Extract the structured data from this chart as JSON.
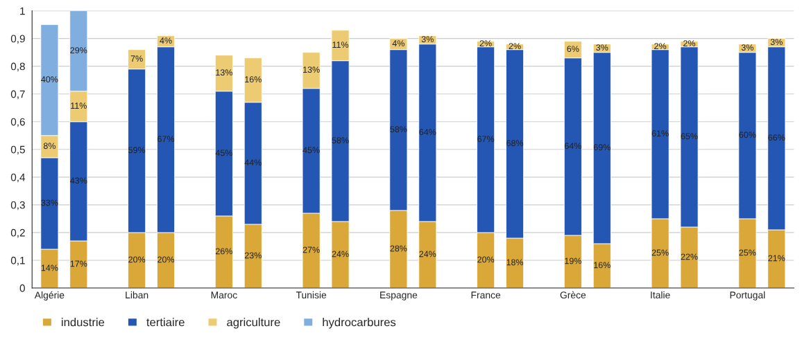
{
  "chart_data": {
    "type": "bar",
    "stacked": true,
    "categories": [
      "Algérie",
      null,
      null,
      "Liban",
      null,
      null,
      "Maroc",
      null,
      null,
      "Tunisie",
      null,
      null,
      "Espagne",
      null,
      null,
      "France",
      null,
      null,
      "Grèce",
      null,
      null,
      "Italie",
      null,
      null,
      "Portugal",
      null
    ],
    "series": [
      {
        "name": "industrie",
        "color": "#d9a838",
        "values": [
          0.14,
          0.17,
          null,
          0.2,
          0.2,
          null,
          0.26,
          0.23,
          null,
          0.27,
          0.24,
          null,
          0.28,
          0.24,
          null,
          0.2,
          0.18,
          null,
          0.19,
          0.16,
          null,
          0.25,
          0.22,
          null,
          0.25,
          0.21
        ],
        "value_labels": [
          "14%",
          "17%",
          null,
          "20%",
          "20%",
          null,
          "26%",
          "23%",
          null,
          "27%",
          "24%",
          null,
          "28%",
          "24%",
          null,
          "20%",
          "18%",
          null,
          "19%",
          "16%",
          null,
          "25%",
          "22%",
          null,
          "25%",
          "21%"
        ]
      },
      {
        "name": "tertiaire",
        "color": "#2456b4",
        "values": [
          0.33,
          0.43,
          null,
          0.59,
          0.67,
          null,
          0.45,
          0.44,
          null,
          0.45,
          0.58,
          null,
          0.58,
          0.64,
          null,
          0.67,
          0.68,
          null,
          0.64,
          0.69,
          null,
          0.61,
          0.65,
          null,
          0.6,
          0.66
        ],
        "value_labels": [
          "33%",
          "43%",
          null,
          "59%",
          "67%",
          null,
          "45%",
          "44%",
          null,
          "45%",
          "58%",
          null,
          "58%",
          "64%",
          null,
          "67%",
          "68%",
          null,
          "64%",
          "69%",
          null,
          "61%",
          "65%",
          null,
          "60%",
          "66%"
        ]
      },
      {
        "name": "agriculture",
        "color": "#eccb72",
        "values": [
          0.08,
          0.11,
          null,
          0.07,
          0.04,
          null,
          0.13,
          0.16,
          null,
          0.13,
          0.11,
          null,
          0.04,
          0.03,
          null,
          0.02,
          0.02,
          null,
          0.06,
          0.03,
          null,
          0.02,
          0.02,
          null,
          0.03,
          0.03
        ],
        "value_labels": [
          "8%",
          "11%",
          null,
          "7%",
          "4%",
          null,
          "13%",
          "16%",
          null,
          "13%",
          "11%",
          null,
          "4%",
          "3%",
          null,
          "2%",
          "2%",
          null,
          "6%",
          "3%",
          null,
          "2%",
          "2%",
          null,
          "3%",
          "3%"
        ]
      },
      {
        "name": "hydrocarbures",
        "color": "#80aede",
        "values": [
          0.4,
          0.29,
          null,
          null,
          null,
          null,
          null,
          null,
          null,
          null,
          null,
          null,
          null,
          null,
          null,
          null,
          null,
          null,
          null,
          null,
          null,
          null,
          null,
          null,
          null,
          null
        ],
        "value_labels": [
          "40%",
          "29%",
          null,
          null,
          null,
          null,
          null,
          null,
          null,
          null,
          null,
          null,
          null,
          null,
          null,
          null,
          null,
          null,
          null,
          null,
          null,
          null,
          null,
          null,
          null,
          null
        ]
      }
    ],
    "ylim": [
      0,
      1
    ],
    "yticks": [
      0,
      {
        "value": 0.1,
        "label": "0,1"
      },
      {
        "value": 0.2,
        "label": "0,2"
      },
      {
        "value": 0.3,
        "label": "0,3"
      },
      {
        "value": 0.4,
        "label": "0,4"
      },
      {
        "value": 0.5,
        "label": "0,5"
      },
      {
        "value": 0.6,
        "label": "0,6"
      },
      {
        "value": 0.7,
        "label": "0,7"
      },
      {
        "value": 0.8,
        "label": "0,8"
      },
      {
        "value": 0.9,
        "label": "0,9"
      },
      1
    ],
    "grid": "y",
    "legend": "bottom"
  }
}
